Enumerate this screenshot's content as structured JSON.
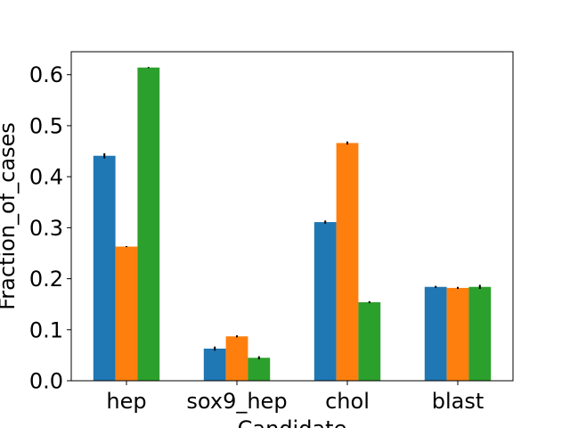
{
  "chart_data": {
    "type": "bar",
    "title": "",
    "xlabel": "Candidate",
    "ylabel": "Fraction_of_cases",
    "categories": [
      "hep",
      "sox9_hep",
      "chol",
      "blast"
    ],
    "ylim": [
      0,
      0.645
    ],
    "yticks": [
      "0.0",
      "0.1",
      "0.2",
      "0.3",
      "0.4",
      "0.5",
      "0.6"
    ],
    "grid": false,
    "legend": "none",
    "series": [
      {
        "color": "#1f77b4",
        "values": [
          0.441,
          0.063,
          0.311,
          0.184
        ],
        "errors": [
          0.005,
          0.004,
          0.003,
          0.002
        ]
      },
      {
        "color": "#ff7f0e",
        "values": [
          0.263,
          0.087,
          0.466,
          0.182
        ],
        "errors": [
          0.001,
          0.002,
          0.003,
          0.002
        ]
      },
      {
        "color": "#2ca02c",
        "values": [
          0.614,
          0.045,
          0.154,
          0.184
        ],
        "errors": [
          0.001,
          0.003,
          0.002,
          0.004
        ]
      }
    ]
  }
}
